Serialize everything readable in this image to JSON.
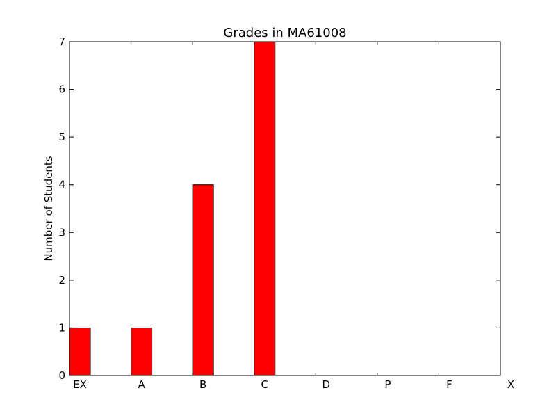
{
  "chart_data": {
    "type": "bar",
    "title": "Grades in MA61008",
    "xlabel": "",
    "ylabel": "Number of Students",
    "categories": [
      "EX",
      "A",
      "B",
      "C",
      "D",
      "P",
      "F",
      "X"
    ],
    "values": [
      1,
      1,
      4,
      7,
      0,
      0,
      0,
      0
    ],
    "ylim": [
      0,
      7
    ],
    "yticks": [
      "0",
      "1",
      "2",
      "3",
      "4",
      "5",
      "6",
      "7"
    ],
    "grid": false,
    "legend": "none",
    "colors": {
      "bar": "#ff0000",
      "edge": "#000000",
      "background": "#ffffff"
    }
  }
}
